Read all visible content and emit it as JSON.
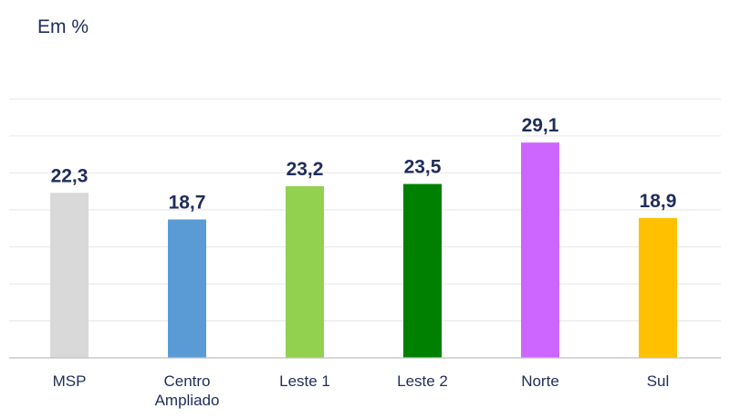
{
  "chart_data": {
    "type": "bar",
    "title": "",
    "unit_label": "Em %",
    "xlabel": "",
    "ylabel": "",
    "categories": [
      "MSP",
      "Centro\nAmpliado",
      "Leste 1",
      "Leste 2",
      "Norte",
      "Sul"
    ],
    "values": [
      22.3,
      18.7,
      23.2,
      23.5,
      29.1,
      18.9
    ],
    "value_labels": [
      "22,3",
      "18,7",
      "23,2",
      "23,5",
      "29,1",
      "18,9"
    ],
    "colors": [
      "#d9d9d9",
      "#5b9bd5",
      "#92d050",
      "#008000",
      "#cc66ff",
      "#ffc000"
    ],
    "ylim": [
      0,
      35
    ],
    "grid": true,
    "legend": "none",
    "value_label_color": "#1f2d5a",
    "axis_label_color": "#1f2d5a"
  }
}
